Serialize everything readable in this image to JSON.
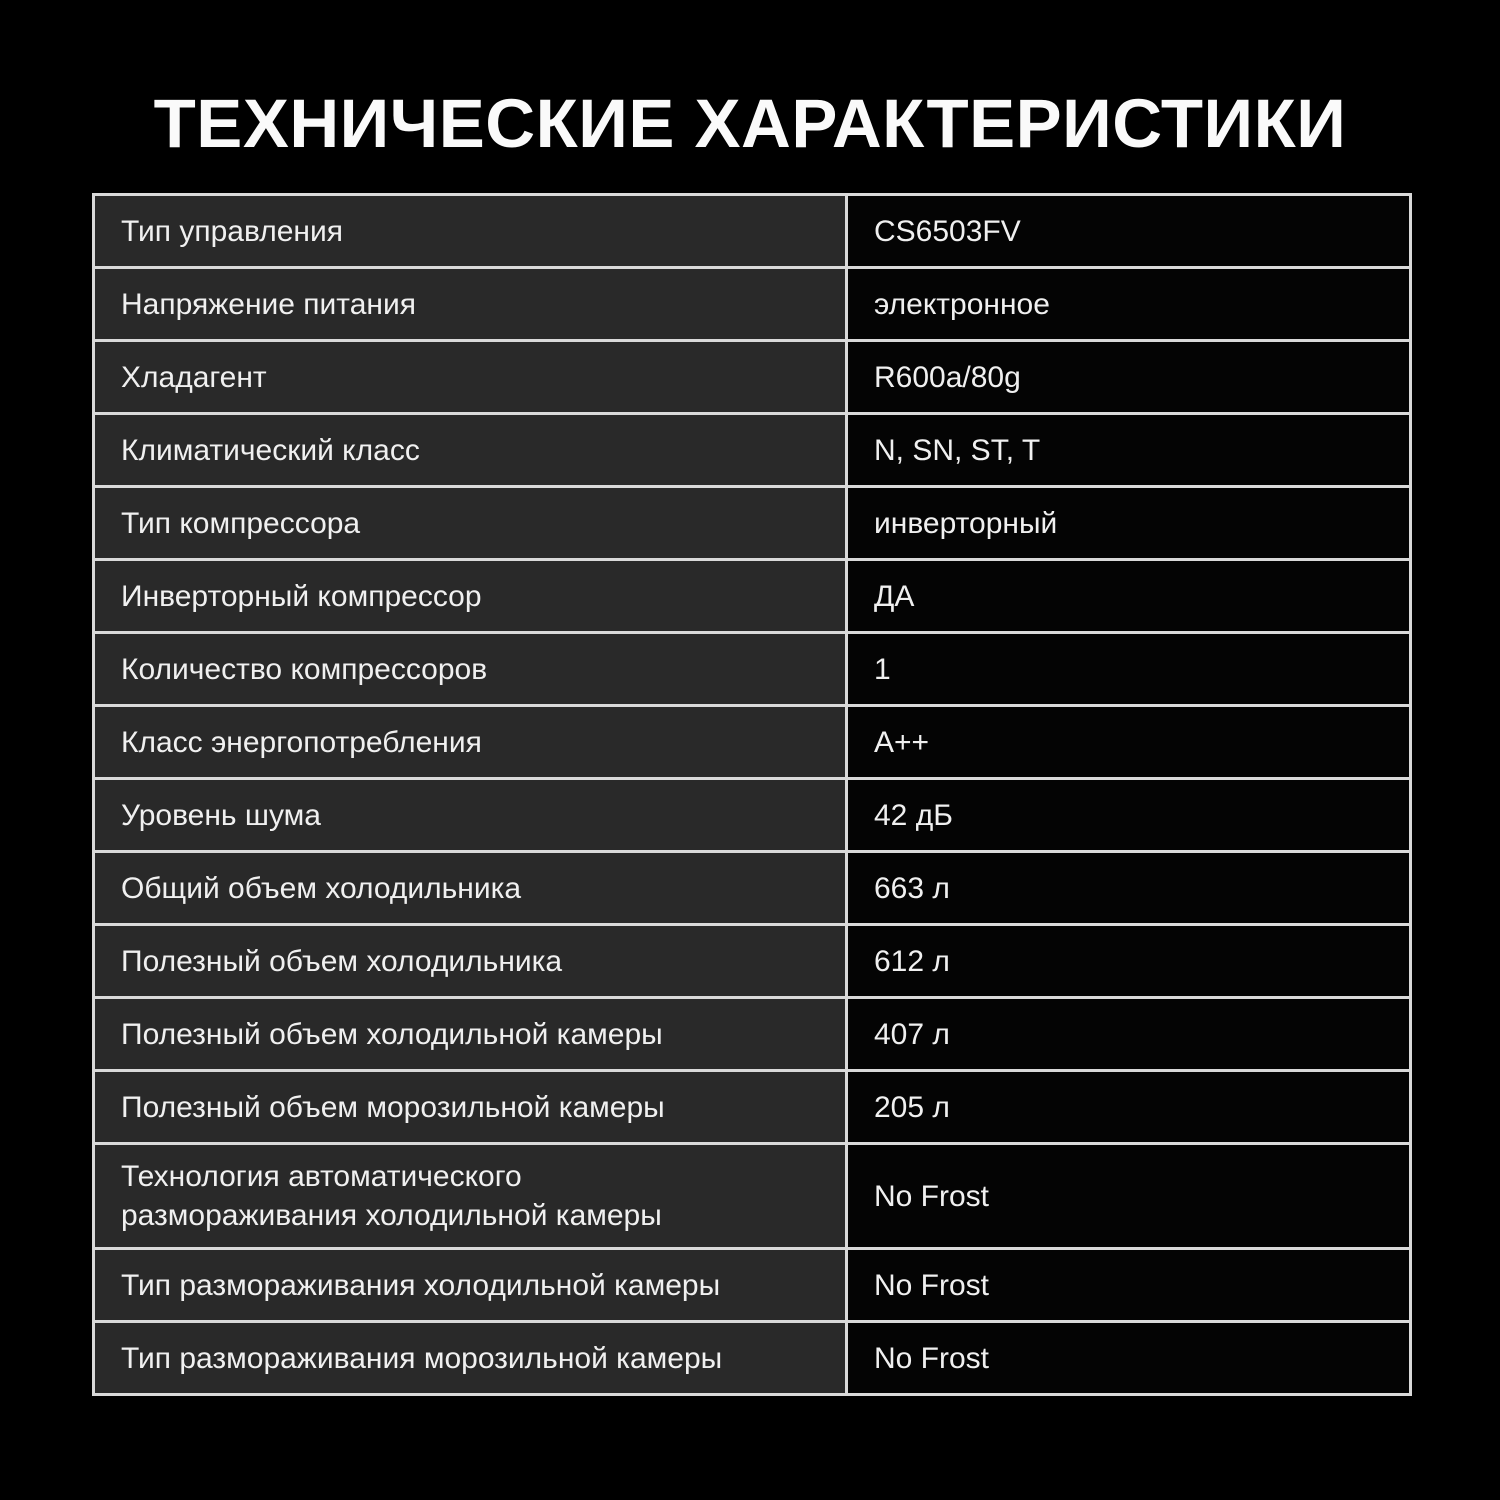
{
  "title": "ТЕХНИЧЕСКИЕ ХАРАКТЕРИСТИКИ",
  "colors": {
    "page-bg": "#000000",
    "label-bg": "#292929",
    "value-bg": "#040404",
    "border": "#d9d9d9",
    "text": "#f0f0f0",
    "title": "#fafafa"
  },
  "table": {
    "rows": [
      {
        "label": "Тип управления",
        "value": "CS6503FV"
      },
      {
        "label": "Напряжение питания",
        "value": "электронное"
      },
      {
        "label": "Хладагент",
        "value": "R600a/80g"
      },
      {
        "label": "Климатический класс",
        "value": "N, SN, ST, T"
      },
      {
        "label": "Тип компрессора",
        "value": "инверторный"
      },
      {
        "label": "Инверторный компрессор",
        "value": "ДА"
      },
      {
        "label": "Количество компрессоров",
        "value": "1"
      },
      {
        "label": "Класс энергопотребления",
        "value": "A++"
      },
      {
        "label": "Уровень шума",
        "value": "42 дБ"
      },
      {
        "label": "Общий объем холодильника",
        "value": "663 л"
      },
      {
        "label": "Полезный объем холодильника",
        "value": "612 л"
      },
      {
        "label": "Полезный объем холодильной камеры",
        "value": "407 л"
      },
      {
        "label": "Полезный объем морозильной камеры",
        "value": "205 л"
      },
      {
        "label": "Технология автоматического\nразмораживания холодильной камеры",
        "value": "No Frost"
      },
      {
        "label": "Тип размораживания холодильной камеры",
        "value": "No Frost"
      },
      {
        "label": "Тип размораживания морозильной камеры",
        "value": "No Frost"
      }
    ]
  }
}
